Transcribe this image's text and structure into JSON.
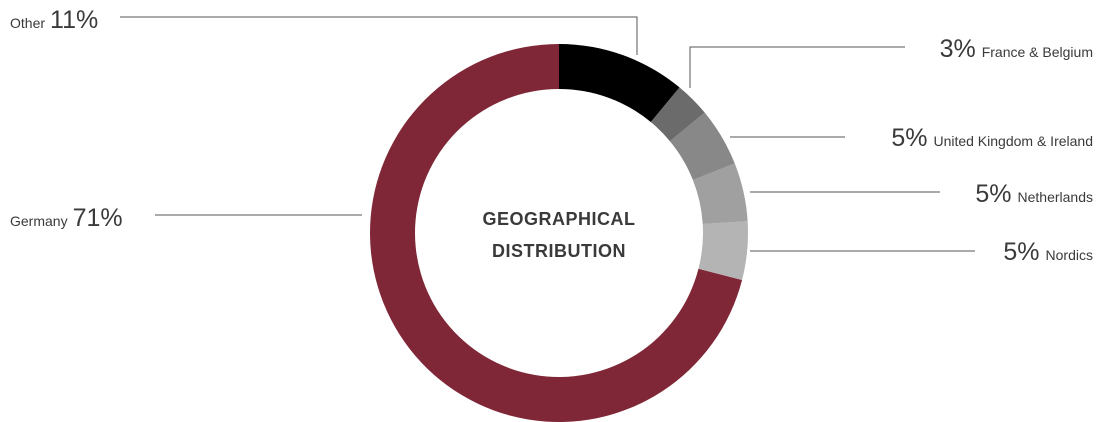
{
  "chart_data": {
    "type": "donut",
    "center_label": [
      "GEOGRAPHICAL",
      "DISTRIBUTION"
    ],
    "categories": [
      "Other",
      "France & Belgium",
      "United Kingdom & Ireland",
      "Netherlands",
      "Nordics",
      "Germany"
    ],
    "values": [
      11,
      3,
      5,
      5,
      5,
      71
    ],
    "value_labels": [
      "11%",
      "3%",
      "5%",
      "5%",
      "5%",
      "71%"
    ],
    "colors": [
      "#000000",
      "#6b6b6b",
      "#888888",
      "#a0a0a0",
      "#b4b4b4",
      "#7f2737"
    ]
  }
}
